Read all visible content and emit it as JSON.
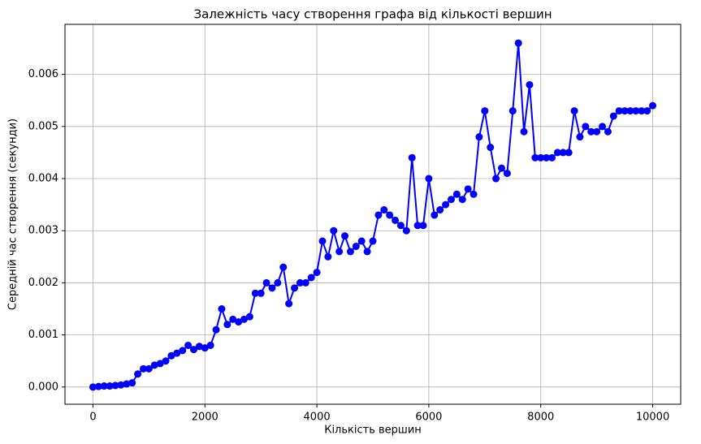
{
  "chart_data": {
    "type": "line",
    "title": "Залежність часу створення графа від кількості вершин",
    "xlabel": "Кількість вершин",
    "ylabel": "Середній час створення (секунди)",
    "x": [
      0,
      100,
      200,
      300,
      400,
      500,
      600,
      700,
      800,
      900,
      1000,
      1100,
      1200,
      1300,
      1400,
      1500,
      1600,
      1700,
      1800,
      1900,
      2000,
      2100,
      2200,
      2300,
      2400,
      2500,
      2600,
      2700,
      2800,
      2900,
      3000,
      3100,
      3200,
      3300,
      3400,
      3500,
      3600,
      3700,
      3800,
      3900,
      4000,
      4100,
      4200,
      4300,
      4400,
      4500,
      4600,
      4700,
      4800,
      4900,
      5000,
      5100,
      5200,
      5300,
      5400,
      5500,
      5600,
      5700,
      5800,
      5900,
      6000,
      6100,
      6200,
      6300,
      6400,
      6500,
      6600,
      6700,
      6800,
      6900,
      7000,
      7100,
      7200,
      7300,
      7400,
      7500,
      7600,
      7700,
      7800,
      7900,
      8000,
      8100,
      8200,
      8300,
      8400,
      8500,
      8600,
      8700,
      8800,
      8900,
      9000,
      9100,
      9200,
      9300,
      9400,
      9500,
      9600,
      9700,
      9800,
      9900,
      10000
    ],
    "series": [
      {
        "color": "#0000ff",
        "values": [
          0.0,
          1e-05,
          2e-05,
          2e-05,
          3e-05,
          4e-05,
          6e-05,
          8e-05,
          0.00025,
          0.00035,
          0.00035,
          0.00042,
          0.00045,
          0.0005,
          0.0006,
          0.00065,
          0.0007,
          0.0008,
          0.00072,
          0.00078,
          0.00075,
          0.0008,
          0.0011,
          0.0015,
          0.0012,
          0.0013,
          0.00125,
          0.0013,
          0.00135,
          0.0018,
          0.0018,
          0.002,
          0.0019,
          0.002,
          0.0023,
          0.0016,
          0.0019,
          0.002,
          0.002,
          0.0021,
          0.0022,
          0.0028,
          0.0025,
          0.003,
          0.0026,
          0.0029,
          0.0026,
          0.0027,
          0.0028,
          0.0026,
          0.0028,
          0.0033,
          0.0034,
          0.0033,
          0.0032,
          0.0031,
          0.003,
          0.0044,
          0.0031,
          0.0031,
          0.004,
          0.0033,
          0.0034,
          0.0035,
          0.0036,
          0.0037,
          0.0036,
          0.0038,
          0.0037,
          0.0048,
          0.0053,
          0.0046,
          0.004,
          0.0042,
          0.0041,
          0.0053,
          0.0066,
          0.0049,
          0.0058,
          0.0044,
          0.0044,
          0.0044,
          0.0044,
          0.0045,
          0.0045,
          0.0045,
          0.0053,
          0.0048,
          0.005,
          0.0049,
          0.0049,
          0.005,
          0.0049,
          0.0052,
          0.0053,
          0.0053,
          0.0053,
          0.0053,
          0.0053,
          0.0053,
          0.0054
        ]
      }
    ],
    "xlim": [
      -500,
      10500
    ],
    "xticks": [
      0,
      2000,
      4000,
      6000,
      8000,
      10000
    ],
    "ylim": [
      -0.00033,
      0.00696
    ],
    "yticks": [
      {
        "value": 0,
        "label": "0.000"
      },
      {
        "value": 0.001,
        "label": "0.001"
      },
      {
        "value": 0.002,
        "label": "0.002"
      },
      {
        "value": 0.003,
        "label": "0.003"
      },
      {
        "value": 0.004,
        "label": "0.004"
      },
      {
        "value": 0.005,
        "label": "0.005"
      },
      {
        "value": 0.006,
        "label": "0.006"
      }
    ],
    "grid": true
  }
}
